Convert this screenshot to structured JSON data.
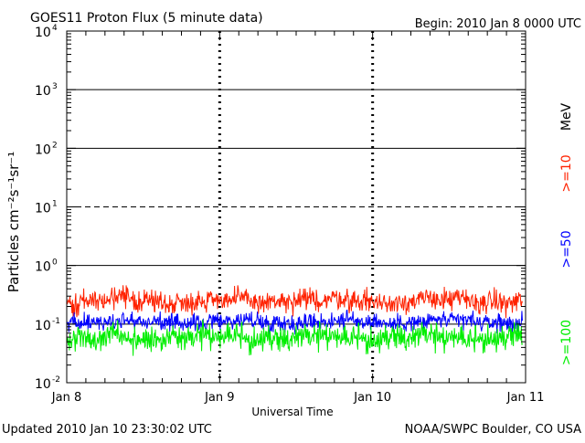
{
  "chart_data": {
    "type": "line",
    "title": "GOES11 Proton Flux (5 minute data)",
    "begin_label": "Begin: 2010 Jan 8 0000 UTC",
    "updated_label": "Updated 2010 Jan 10 23:30:02 UTC",
    "credit_label": "NOAA/SWPC Boulder, CO USA",
    "xlabel": "Universal Time",
    "ylabel": "Particles cm⁻²s⁻¹sr⁻¹",
    "y_scale": "log",
    "ylim": [
      0.01,
      10000
    ],
    "y_ticks": [
      {
        "value": 0.01,
        "base": "10",
        "exp": "-2"
      },
      {
        "value": 0.1,
        "base": "10",
        "exp": "-1"
      },
      {
        "value": 1,
        "base": "10",
        "exp": "0"
      },
      {
        "value": 10,
        "base": "10",
        "exp": "1"
      },
      {
        "value": 100,
        "base": "10",
        "exp": "2"
      },
      {
        "value": 1000,
        "base": "10",
        "exp": "3"
      },
      {
        "value": 10000,
        "base": "10",
        "exp": "4"
      }
    ],
    "xlim": [
      0,
      3
    ],
    "x_ticks": [
      {
        "value": 0,
        "label": "Jan 8"
      },
      {
        "value": 1,
        "label": "Jan 9"
      },
      {
        "value": 2,
        "label": "Jan 10"
      },
      {
        "value": 3,
        "label": "Jan 11"
      }
    ],
    "grid": true,
    "legend_placement": "right",
    "legend_unit": "MeV",
    "series": [
      {
        "name": ">=10",
        "color": "#ff2200",
        "baseline": 0.25,
        "spread": 0.28,
        "seed": 11
      },
      {
        "name": ">=50",
        "color": "#0000ff",
        "baseline": 0.11,
        "spread": 0.22,
        "seed": 23
      },
      {
        "name": ">=100",
        "color": "#00ee00",
        "baseline": 0.055,
        "spread": 0.34,
        "seed": 37
      }
    ],
    "data_end": 2.98
  }
}
